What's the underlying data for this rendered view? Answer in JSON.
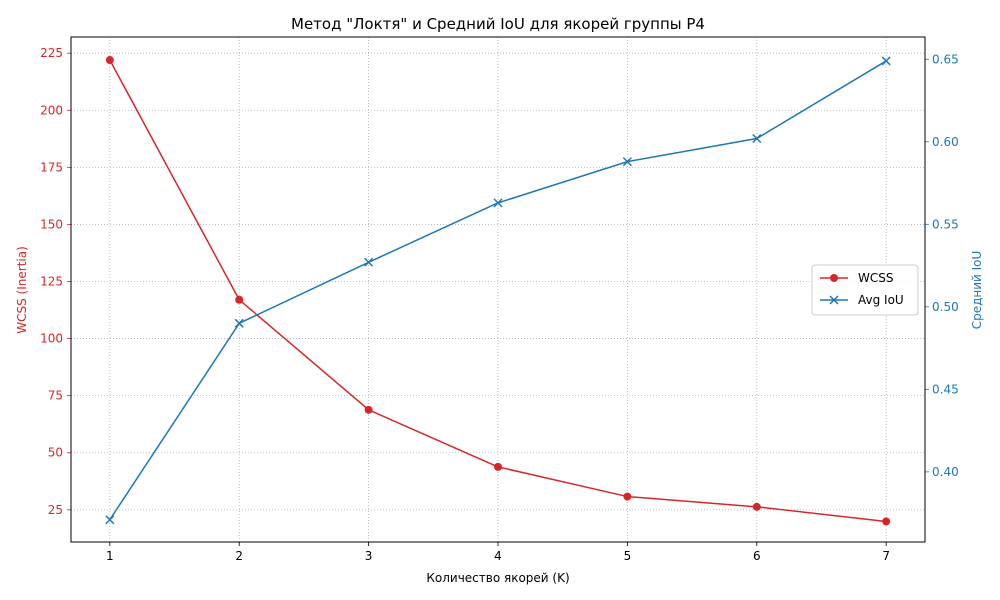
{
  "chart_data": {
    "type": "line",
    "title": "Метод \"Локтя\" и Средний IoU для якорей группы P4",
    "xlabel": "Количество якорей (K)",
    "ylabel_left": "WCSS (Inertia)",
    "ylabel_right": "Средний IoU",
    "x": [
      1,
      2,
      3,
      4,
      5,
      6,
      7
    ],
    "xlim": [
      0.7,
      7.3
    ],
    "ylim_left": [
      10.9,
      232.1
    ],
    "ylim_right": [
      0.3575,
      0.6635
    ],
    "left_ticks": [
      "25",
      "50",
      "75",
      "100",
      "125",
      "150",
      "175",
      "200",
      "225"
    ],
    "right_ticks": [
      "0.40",
      "0.45",
      "0.50",
      "0.55",
      "0.60",
      "0.65"
    ],
    "grid": true,
    "legend_position": "center-right",
    "series": [
      {
        "name": "WCSS",
        "axis": "left",
        "color": "#d62728",
        "marker": "circle",
        "values": [
          222,
          117,
          68.8,
          43.8,
          30.8,
          26.3,
          19.9
        ]
      },
      {
        "name": "Avg IoU",
        "axis": "right",
        "color": "#1f77b4",
        "marker": "x",
        "values": [
          0.371,
          0.49,
          0.527,
          0.563,
          0.588,
          0.602,
          0.649
        ]
      }
    ]
  }
}
